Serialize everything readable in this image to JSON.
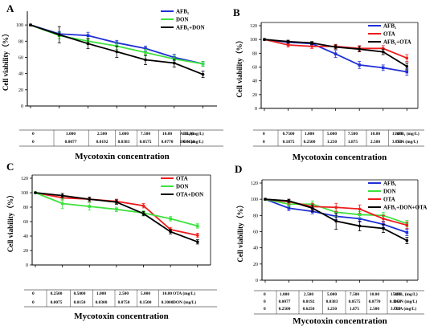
{
  "figure": {
    "panels": [
      {
        "id": "A",
        "xtitle": "Mycotoxin concentration",
        "rows": [
          {
            "label": "AFB₁ (mg/L)",
            "values": [
              "0",
              "1.000",
              "2.500",
              "5.000",
              "7.500",
              "10.00",
              "15.00"
            ]
          },
          {
            "label": "DON (mg/L)",
            "values": [
              "0",
              "0.0077",
              "0.0192",
              "0.0383",
              "0.0575",
              "0.0770",
              "0.1150"
            ]
          }
        ]
      },
      {
        "id": "B",
        "xtitle": "Mycotoxin concentration",
        "rows": [
          {
            "label": "AFB₁ (mg/L)",
            "values": [
              "0",
              "0.7500",
              "1.000",
              "5.000",
              "7.500",
              "10.00",
              "15.00"
            ]
          },
          {
            "label": "OTA (mg/L)",
            "values": [
              "0",
              "0.1875",
              "0.2500",
              "1.250",
              "1.875",
              "2.500",
              "3.750"
            ]
          }
        ]
      },
      {
        "id": "C",
        "xtitle": "Mycotoxin concentration",
        "rows": [
          {
            "label": "OTA (mg/L)",
            "values": [
              "0",
              "0.2500",
              "0.5000",
              "1.000",
              "2.500",
              "5.000",
              "10.00"
            ]
          },
          {
            "label": "DON (mg/L)",
            "values": [
              "0",
              "0.0075",
              "0.0150",
              "0.0300",
              "0.0750",
              "0.1500",
              "0.3000"
            ]
          }
        ]
      },
      {
        "id": "D",
        "xtitle": "Mycotoxin concentration",
        "rows": [
          {
            "label": "AFB₁ (mg/L)",
            "values": [
              "0",
              "1.000",
              "2.500",
              "5.000",
              "7.500",
              "10.00",
              "15.00"
            ]
          },
          {
            "label": "DON (mg/L)",
            "values": [
              "0",
              "0.0077",
              "0.0192",
              "0.0383",
              "0.0575",
              "0.0770",
              "0.1150"
            ]
          },
          {
            "label": "OTA (mg/L)",
            "values": [
              "0",
              "0.2500",
              "0.6250",
              "1.250",
              "1.875",
              "2.500",
              "3.750"
            ]
          }
        ]
      }
    ]
  },
  "chart_data": [
    {
      "panel": "A",
      "type": "line",
      "ylabel": "Cell viability（%）",
      "ylim": [
        0,
        120
      ],
      "yticks": [
        0,
        20,
        40,
        60,
        80,
        100
      ],
      "legend_position": "top-right",
      "x": [
        0,
        1,
        2,
        3,
        4,
        5,
        6
      ],
      "series": [
        {
          "name": "AFB₁",
          "color": "#1f2fd6",
          "values": [
            100,
            89,
            87,
            78,
            71,
            60,
            52
          ],
          "errors": [
            0,
            3,
            4,
            3,
            3,
            4,
            3
          ]
        },
        {
          "name": "DON",
          "color": "#3ee23e",
          "values": [
            100,
            87,
            80,
            74,
            66,
            58,
            52
          ],
          "errors": [
            0,
            4,
            4,
            4,
            4,
            4,
            3
          ]
        },
        {
          "name": "AFB₁+DON",
          "color": "#000000",
          "values": [
            100,
            88,
            77,
            67,
            57,
            53,
            39
          ],
          "errors": [
            0,
            10,
            6,
            7,
            6,
            5,
            4
          ]
        }
      ]
    },
    {
      "panel": "B",
      "type": "line",
      "ylabel": "Cell viability（%）",
      "ylim": [
        0,
        120
      ],
      "yticks": [
        0,
        20,
        40,
        60,
        80,
        100,
        120
      ],
      "legend_position": "top-right",
      "x": [
        0,
        1,
        2,
        3,
        4,
        5,
        6
      ],
      "series": [
        {
          "name": "AFB₁",
          "color": "#1f2fd6",
          "values": [
            100,
            96,
            94,
            79,
            63,
            59,
            53
          ],
          "errors": [
            0,
            2,
            2,
            5,
            5,
            4,
            5
          ]
        },
        {
          "name": "OTA",
          "color": "#ee1c1c",
          "values": [
            100,
            92,
            90,
            90,
            87,
            87,
            73
          ],
          "errors": [
            0,
            3,
            3,
            3,
            4,
            4,
            5
          ]
        },
        {
          "name": "AFB₁+OTA",
          "color": "#000000",
          "values": [
            100,
            97,
            95,
            89,
            86,
            82,
            61
          ],
          "errors": [
            0,
            2,
            2,
            3,
            4,
            4,
            5
          ]
        }
      ]
    },
    {
      "panel": "C",
      "type": "line",
      "ylabel": "Cell viability（%）",
      "ylim": [
        0,
        120
      ],
      "yticks": [
        0,
        20,
        40,
        60,
        80,
        100,
        120
      ],
      "legend_position": "top-right",
      "x": [
        0,
        1,
        2,
        3,
        4,
        5,
        6
      ],
      "series": [
        {
          "name": "OTA",
          "color": "#ee1c1c",
          "values": [
            100,
            93,
            91,
            88,
            82,
            49,
            41
          ],
          "errors": [
            0,
            3,
            3,
            3,
            3,
            3,
            3
          ]
        },
        {
          "name": "DON",
          "color": "#3ee23e",
          "values": [
            100,
            85,
            81,
            77,
            72,
            64,
            54
          ],
          "errors": [
            0,
            7,
            5,
            3,
            3,
            3,
            3
          ]
        },
        {
          "name": "OTA+DON",
          "color": "#000000",
          "values": [
            100,
            96,
            91,
            87,
            71,
            46,
            32
          ],
          "errors": [
            0,
            3,
            3,
            3,
            3,
            3,
            3
          ]
        }
      ]
    },
    {
      "panel": "D",
      "type": "line",
      "ylabel": "Cell viability（%）",
      "ylim": [
        0,
        120
      ],
      "yticks": [
        0,
        20,
        40,
        60,
        80,
        100,
        120
      ],
      "legend_position": "top-right",
      "x": [
        0,
        1,
        2,
        3,
        4,
        5,
        6
      ],
      "series": [
        {
          "name": "AFB₁",
          "color": "#1f2fd6",
          "values": [
            100,
            89,
            85,
            79,
            76,
            69,
            59
          ],
          "errors": [
            0,
            3,
            3,
            4,
            4,
            4,
            4
          ]
        },
        {
          "name": "DON",
          "color": "#3ee23e",
          "values": [
            100,
            94,
            94,
            84,
            81,
            80,
            70
          ],
          "errors": [
            0,
            3,
            4,
            5,
            4,
            4,
            4
          ]
        },
        {
          "name": "OTA",
          "color": "#ee1c1c",
          "values": [
            100,
            97,
            91,
            90,
            88,
            76,
            68
          ],
          "errors": [
            0,
            3,
            4,
            5,
            5,
            4,
            4
          ]
        },
        {
          "name": "AFB₁+DON+OTA",
          "color": "#000000",
          "values": [
            100,
            98,
            89,
            73,
            67,
            64,
            49
          ],
          "errors": [
            0,
            2,
            4,
            10,
            6,
            5,
            4
          ]
        }
      ]
    }
  ]
}
